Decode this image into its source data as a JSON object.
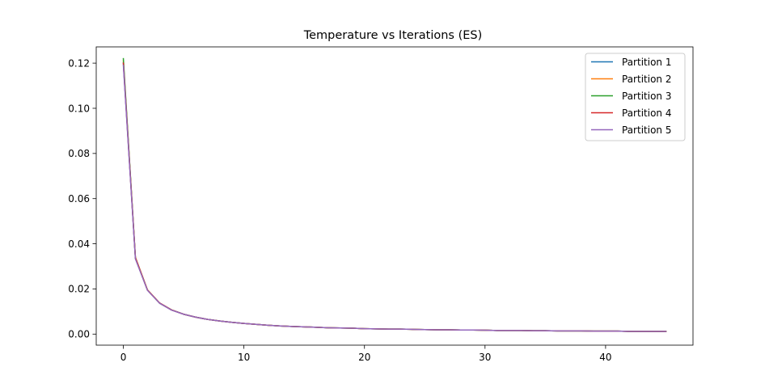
{
  "chart_data": {
    "type": "line",
    "title": "Temperature vs Iterations (ES)",
    "xlabel": "",
    "ylabel": "",
    "xlim": [
      -2.25,
      47.25
    ],
    "ylim": [
      -0.0049,
      0.1272
    ],
    "x_ticks": [
      0,
      10,
      20,
      30,
      40
    ],
    "x_tick_labels": [
      "0",
      "10",
      "20",
      "30",
      "40"
    ],
    "y_ticks": [
      0.0,
      0.02,
      0.04,
      0.06,
      0.08,
      0.1,
      0.12
    ],
    "y_tick_labels": [
      "0.00",
      "0.02",
      "0.04",
      "0.06",
      "0.08",
      "0.10",
      "0.12"
    ],
    "grid": false,
    "legend_position": "top-right",
    "x": [
      0,
      1,
      2,
      3,
      4,
      5,
      6,
      7,
      8,
      9,
      10,
      11,
      12,
      13,
      14,
      15,
      16,
      17,
      18,
      19,
      20,
      21,
      22,
      23,
      24,
      25,
      26,
      27,
      28,
      29,
      30,
      31,
      32,
      33,
      34,
      35,
      36,
      37,
      38,
      39,
      40,
      41,
      42,
      43,
      44,
      45
    ],
    "series": [
      {
        "name": "Partition 1",
        "color": "#1f77b4",
        "values": [
          0.12,
          0.034,
          0.0195,
          0.0138,
          0.0107,
          0.0088,
          0.0075,
          0.0065,
          0.0058,
          0.0052,
          0.0047,
          0.0043,
          0.0039,
          0.0036,
          0.0034,
          0.0032,
          0.003,
          0.0028,
          0.0027,
          0.0026,
          0.0024,
          0.0023,
          0.0022,
          0.0022,
          0.0021,
          0.002,
          0.0019,
          0.0019,
          0.0018,
          0.0018,
          0.0017,
          0.0016,
          0.0016,
          0.0016,
          0.0015,
          0.0015,
          0.0014,
          0.0014,
          0.0014,
          0.0013,
          0.0013,
          0.0013,
          0.0012,
          0.0012,
          0.0012,
          0.0012
        ]
      },
      {
        "name": "Partition 2",
        "color": "#ff7f0e",
        "values": [
          0.121,
          0.034,
          0.0196,
          0.0138,
          0.0107,
          0.0088,
          0.0075,
          0.0065,
          0.0058,
          0.0052,
          0.0047,
          0.0043,
          0.0039,
          0.0036,
          0.0034,
          0.0032,
          0.003,
          0.0028,
          0.0027,
          0.0026,
          0.0024,
          0.0023,
          0.0022,
          0.0022,
          0.0021,
          0.002,
          0.0019,
          0.0019,
          0.0018,
          0.0018,
          0.0017,
          0.0016,
          0.0016,
          0.0016,
          0.0015,
          0.0015,
          0.0014,
          0.0014,
          0.0014,
          0.0013,
          0.0013,
          0.0013,
          0.0012,
          0.0012,
          0.0012,
          0.0012
        ]
      },
      {
        "name": "Partition 3",
        "color": "#2ca02c",
        "values": [
          0.122,
          0.0335,
          0.0195,
          0.0137,
          0.0107,
          0.0088,
          0.0075,
          0.0065,
          0.0058,
          0.0052,
          0.0047,
          0.0043,
          0.0039,
          0.0036,
          0.0034,
          0.0032,
          0.003,
          0.0028,
          0.0027,
          0.0026,
          0.0024,
          0.0023,
          0.0022,
          0.0022,
          0.0021,
          0.002,
          0.0019,
          0.0019,
          0.0018,
          0.0018,
          0.0017,
          0.0016,
          0.0016,
          0.0016,
          0.0015,
          0.0015,
          0.0014,
          0.0014,
          0.0014,
          0.0013,
          0.0013,
          0.0013,
          0.0012,
          0.0012,
          0.0012,
          0.0012
        ]
      },
      {
        "name": "Partition 4",
        "color": "#d62728",
        "values": [
          0.12,
          0.0337,
          0.0195,
          0.0138,
          0.0107,
          0.0088,
          0.0075,
          0.0065,
          0.0058,
          0.0052,
          0.0047,
          0.0043,
          0.0039,
          0.0036,
          0.0034,
          0.0032,
          0.003,
          0.0028,
          0.0027,
          0.0026,
          0.0024,
          0.0023,
          0.0022,
          0.0022,
          0.0021,
          0.002,
          0.0019,
          0.0019,
          0.0018,
          0.0018,
          0.0017,
          0.0016,
          0.0016,
          0.0016,
          0.0015,
          0.0015,
          0.0014,
          0.0014,
          0.0014,
          0.0013,
          0.0013,
          0.0013,
          0.0012,
          0.0012,
          0.0012,
          0.0012
        ]
      },
      {
        "name": "Partition 5",
        "color": "#9467bd",
        "values": [
          0.119,
          0.0333,
          0.0194,
          0.0137,
          0.0106,
          0.0088,
          0.0075,
          0.0065,
          0.0058,
          0.0052,
          0.0047,
          0.0043,
          0.0039,
          0.0036,
          0.0034,
          0.0032,
          0.003,
          0.0028,
          0.0027,
          0.0026,
          0.0024,
          0.0023,
          0.0022,
          0.0022,
          0.0021,
          0.002,
          0.0019,
          0.0019,
          0.0018,
          0.0018,
          0.0017,
          0.0016,
          0.0016,
          0.0016,
          0.0015,
          0.0015,
          0.0014,
          0.0014,
          0.0014,
          0.0013,
          0.0013,
          0.0013,
          0.0012,
          0.0012,
          0.0012,
          0.0012
        ]
      }
    ]
  }
}
